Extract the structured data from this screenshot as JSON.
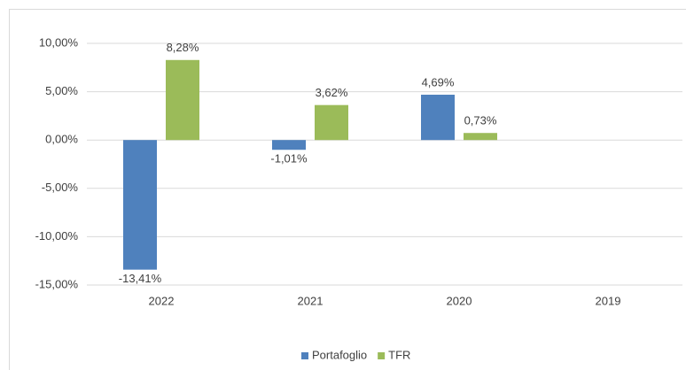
{
  "chart_data": {
    "type": "bar",
    "categories": [
      "2022",
      "2021",
      "2020",
      "2019"
    ],
    "series": [
      {
        "name": "Portafoglio",
        "color": "#4f81bd",
        "values": [
          -13.41,
          -1.01,
          4.69,
          null
        ],
        "value_labels": [
          "-13,41%",
          "-1,01%",
          "4,69%",
          null
        ]
      },
      {
        "name": "TFR",
        "color": "#9bbb59",
        "values": [
          8.28,
          3.62,
          0.73,
          null
        ],
        "value_labels": [
          "8,28%",
          "3,62%",
          "0,73%",
          null
        ]
      }
    ],
    "ylim": [
      -15,
      10
    ],
    "yticks": [
      {
        "value": -15,
        "label": "-15,00%"
      },
      {
        "value": -10,
        "label": "-10,00%"
      },
      {
        "value": -5,
        "label": "-5,00%"
      },
      {
        "value": 0,
        "label": "0,00%"
      },
      {
        "value": 5,
        "label": "5,00%"
      },
      {
        "value": 10,
        "label": "10,00%"
      }
    ],
    "grid": true,
    "legend": "bottom"
  }
}
